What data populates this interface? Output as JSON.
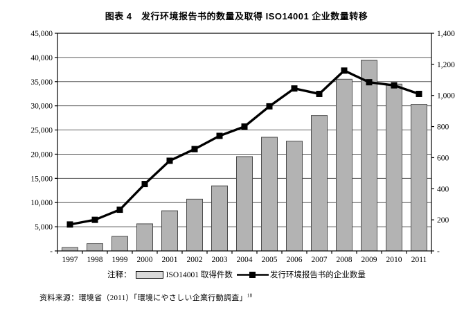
{
  "title": "图表 4　发行环境报告书的数量及取得 ISO14001 企业数量转移",
  "legend": {
    "prefix": "注释：",
    "bar_label": "ISO14001 取得件数",
    "line_label": "发行环境报告书的企业数量"
  },
  "source": {
    "text": "资料来源：環境省（2011）「環境にやさしい企業行動調査」",
    "superscript": "18"
  },
  "colors": {
    "bar_fill": "#b3b3b3",
    "bar_border": "#4d4d4d",
    "legend_swatch": "#d9d9d9",
    "line": "#000000",
    "grid": "#595959",
    "frame": "#000000",
    "background": "#ffffff"
  },
  "chart_data": {
    "type": "combo",
    "categories": [
      "1997",
      "1998",
      "1999",
      "2000",
      "2001",
      "2002",
      "2003",
      "2004",
      "2005",
      "2006",
      "2007",
      "2008",
      "2009",
      "2010",
      "2011"
    ],
    "series": [
      {
        "name": "ISO14001 取得件数",
        "type": "bar",
        "axis": "left",
        "values": [
          700,
          1500,
          3000,
          5600,
          8300,
          10700,
          13450,
          19500,
          23500,
          22700,
          28000,
          35500,
          39400,
          34500,
          30300
        ]
      },
      {
        "name": "发行环境报告书的企业数量",
        "type": "line",
        "axis": "right",
        "values": [
          170,
          200,
          265,
          430,
          580,
          655,
          740,
          800,
          930,
          1045,
          1010,
          1160,
          1085,
          1065,
          1010
        ]
      }
    ],
    "left_axis": {
      "min": 0,
      "max": 45000,
      "step": 5000,
      "ticks": [
        "45,000",
        "40,000",
        "35,000",
        "30,000",
        "25,000",
        "20,000",
        "15,000",
        "10,000",
        "5,000",
        "-"
      ]
    },
    "right_axis": {
      "min": 0,
      "max": 1400,
      "step": 200,
      "ticks": [
        "1,400",
        "1,200",
        "1,000",
        "800",
        "600",
        "400",
        "200",
        "-"
      ]
    },
    "grid": "horizontal, at left-axis 5,000 steps",
    "legend_position": "bottom"
  }
}
